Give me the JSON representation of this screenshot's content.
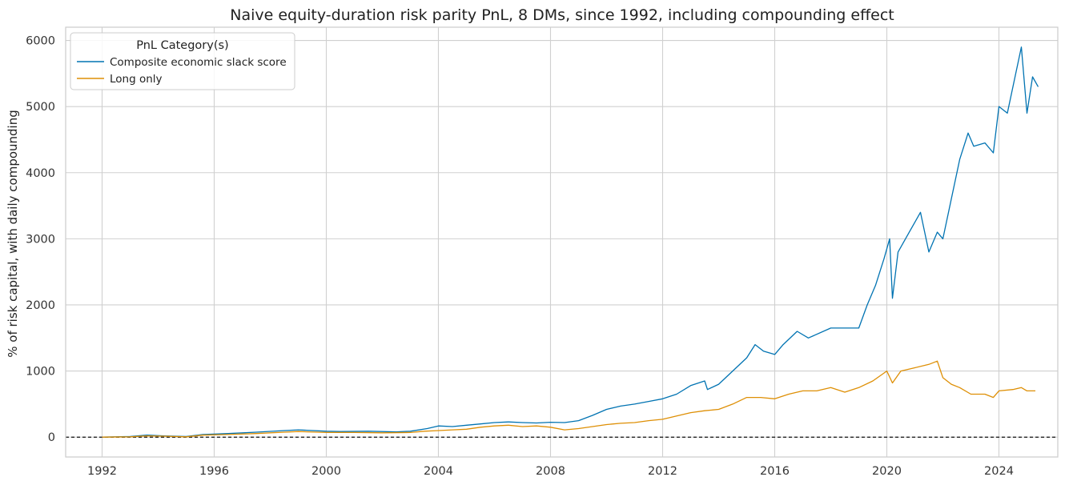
{
  "chart_data": {
    "type": "line",
    "title": "Naive equity-duration risk parity PnL, 8 DMs, since 1992, including compounding effect",
    "xlabel": "",
    "ylabel": "% of risk capital, with daily compounding",
    "xlim": [
      1990.7,
      2026.1
    ],
    "ylim": [
      -300,
      6200
    ],
    "x_ticks": [
      "1992",
      "1996",
      "2000",
      "2004",
      "2008",
      "2012",
      "2016",
      "2020",
      "2024"
    ],
    "y_ticks": [
      0,
      1000,
      2000,
      3000,
      4000,
      5000,
      6000
    ],
    "grid": true,
    "zero_line": true,
    "legend": {
      "title": "PnL Category(s)",
      "placement": "top-left"
    },
    "series": [
      {
        "name": "Composite economic slack score",
        "color": "#0173b2",
        "points": [
          [
            1992.0,
            0
          ],
          [
            1993.0,
            10
          ],
          [
            1993.6,
            30
          ],
          [
            1994.2,
            20
          ],
          [
            1995.0,
            10
          ],
          [
            1995.6,
            40
          ],
          [
            1996.5,
            55
          ],
          [
            1997.5,
            75
          ],
          [
            1998.5,
            100
          ],
          [
            1999.0,
            110
          ],
          [
            2000.0,
            90
          ],
          [
            2000.5,
            85
          ],
          [
            2001.5,
            90
          ],
          [
            2002.5,
            80
          ],
          [
            2003.0,
            90
          ],
          [
            2003.6,
            130
          ],
          [
            2004.0,
            170
          ],
          [
            2004.5,
            160
          ],
          [
            2005.0,
            180
          ],
          [
            2005.5,
            200
          ],
          [
            2006.0,
            220
          ],
          [
            2006.5,
            230
          ],
          [
            2007.0,
            220
          ],
          [
            2007.5,
            215
          ],
          [
            2008.0,
            225
          ],
          [
            2008.5,
            220
          ],
          [
            2009.0,
            250
          ],
          [
            2009.5,
            330
          ],
          [
            2010.0,
            420
          ],
          [
            2010.5,
            470
          ],
          [
            2011.0,
            500
          ],
          [
            2011.5,
            540
          ],
          [
            2012.0,
            580
          ],
          [
            2012.5,
            650
          ],
          [
            2013.0,
            780
          ],
          [
            2013.5,
            850
          ],
          [
            2013.6,
            720
          ],
          [
            2014.0,
            800
          ],
          [
            2014.5,
            1000
          ],
          [
            2015.0,
            1200
          ],
          [
            2015.3,
            1400
          ],
          [
            2015.6,
            1300
          ],
          [
            2016.0,
            1250
          ],
          [
            2016.3,
            1400
          ],
          [
            2016.8,
            1600
          ],
          [
            2017.2,
            1500
          ],
          [
            2018.0,
            1650
          ],
          [
            2018.5,
            1650
          ],
          [
            2019.0,
            1650
          ],
          [
            2019.3,
            2000
          ],
          [
            2019.6,
            2300
          ],
          [
            2019.9,
            2700
          ],
          [
            2020.1,
            3000
          ],
          [
            2020.2,
            2100
          ],
          [
            2020.4,
            2800
          ],
          [
            2020.8,
            3100
          ],
          [
            2021.2,
            3400
          ],
          [
            2021.5,
            2800
          ],
          [
            2021.8,
            3100
          ],
          [
            2022.0,
            3000
          ],
          [
            2022.3,
            3600
          ],
          [
            2022.6,
            4200
          ],
          [
            2022.9,
            4600
          ],
          [
            2023.1,
            4400
          ],
          [
            2023.5,
            4450
          ],
          [
            2023.8,
            4300
          ],
          [
            2024.0,
            5000
          ],
          [
            2024.3,
            4900
          ],
          [
            2024.6,
            5500
          ],
          [
            2024.8,
            5900
          ],
          [
            2025.0,
            4900
          ],
          [
            2025.2,
            5450
          ],
          [
            2025.4,
            5300
          ]
        ]
      },
      {
        "name": "Long only",
        "color": "#de8f05",
        "points": [
          [
            1992.0,
            0
          ],
          [
            1993.0,
            5
          ],
          [
            1993.6,
            20
          ],
          [
            1994.2,
            15
          ],
          [
            1995.0,
            5
          ],
          [
            1995.6,
            30
          ],
          [
            1996.5,
            40
          ],
          [
            1997.5,
            55
          ],
          [
            1998.5,
            75
          ],
          [
            1999.0,
            85
          ],
          [
            2000.0,
            70
          ],
          [
            2001.0,
            70
          ],
          [
            2002.0,
            65
          ],
          [
            2003.0,
            70
          ],
          [
            2003.5,
            90
          ],
          [
            2004.0,
            100
          ],
          [
            2004.5,
            110
          ],
          [
            2005.0,
            120
          ],
          [
            2005.5,
            150
          ],
          [
            2006.0,
            170
          ],
          [
            2006.5,
            180
          ],
          [
            2007.0,
            160
          ],
          [
            2007.5,
            170
          ],
          [
            2008.0,
            150
          ],
          [
            2008.5,
            110
          ],
          [
            2009.0,
            130
          ],
          [
            2009.5,
            160
          ],
          [
            2010.0,
            190
          ],
          [
            2010.5,
            210
          ],
          [
            2011.0,
            220
          ],
          [
            2011.5,
            250
          ],
          [
            2012.0,
            270
          ],
          [
            2012.5,
            320
          ],
          [
            2013.0,
            370
          ],
          [
            2013.5,
            400
          ],
          [
            2014.0,
            420
          ],
          [
            2014.5,
            500
          ],
          [
            2015.0,
            600
          ],
          [
            2015.5,
            600
          ],
          [
            2016.0,
            580
          ],
          [
            2016.5,
            650
          ],
          [
            2017.0,
            700
          ],
          [
            2017.5,
            700
          ],
          [
            2018.0,
            750
          ],
          [
            2018.5,
            680
          ],
          [
            2019.0,
            750
          ],
          [
            2019.5,
            850
          ],
          [
            2020.0,
            1000
          ],
          [
            2020.2,
            820
          ],
          [
            2020.5,
            1000
          ],
          [
            2021.0,
            1050
          ],
          [
            2021.5,
            1100
          ],
          [
            2021.8,
            1150
          ],
          [
            2022.0,
            900
          ],
          [
            2022.3,
            800
          ],
          [
            2022.6,
            750
          ],
          [
            2023.0,
            650
          ],
          [
            2023.5,
            650
          ],
          [
            2023.8,
            600
          ],
          [
            2024.0,
            700
          ],
          [
            2024.5,
            720
          ],
          [
            2024.8,
            750
          ],
          [
            2025.0,
            700
          ],
          [
            2025.3,
            700
          ]
        ]
      }
    ]
  }
}
